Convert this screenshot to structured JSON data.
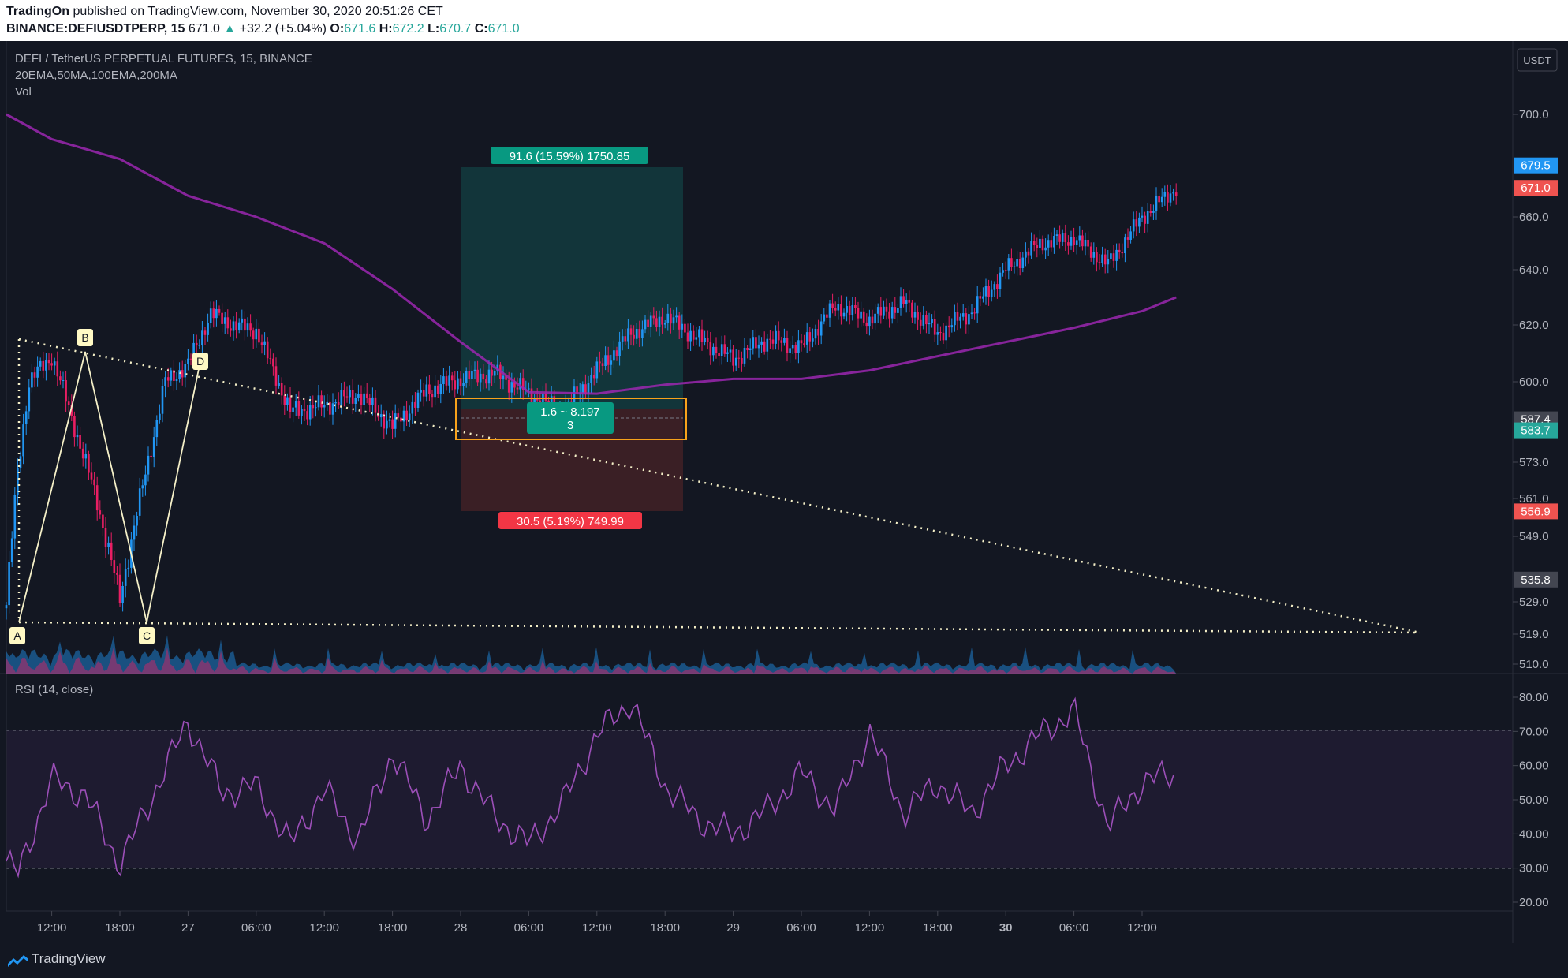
{
  "header": {
    "publisher": "TradingOn",
    "published_text": " published on TradingView.com, November 30, 2020 20:51:26 CET",
    "symbol": "BINANCE:DEFIUSDTPERP, 15",
    "last": "671.0",
    "change": "+32.2 (+5.04%)",
    "o": "671.6",
    "h": "672.2",
    "l": "670.7",
    "c": "671.0",
    "o_label": "O:",
    "h_label": "H:",
    "l_label": "L:",
    "c_label": "C:"
  },
  "legend": {
    "title": "DEFI / TetherUS PERPETUAL FUTURES, 15, BINANCE",
    "studies": "20EMA,50MA,100EMA,200MA",
    "vol": "Vol",
    "rsi": "RSI (14, close)"
  },
  "price_axis": {
    "unit": "USDT",
    "ticks": [
      "700.0",
      "660.0",
      "640.0",
      "620.0",
      "600.0",
      "573.0",
      "561.0",
      "549.0",
      "529.0",
      "519.0",
      "510.0"
    ]
  },
  "rsi_axis": {
    "ticks": [
      "80.00",
      "70.00",
      "60.00",
      "50.00",
      "40.00",
      "30.00",
      "20.00"
    ]
  },
  "time_axis": {
    "labels": [
      "12:00",
      "18:00",
      "27",
      "06:00",
      "12:00",
      "18:00",
      "28",
      "06:00",
      "12:00",
      "18:00",
      "29",
      "06:00",
      "12:00",
      "18:00",
      "30",
      "06:00",
      "12:00"
    ]
  },
  "price_tags": [
    {
      "label": "679.5",
      "color": "#2196f3"
    },
    {
      "label": "671.0",
      "color": "#ef5350"
    },
    {
      "label": "587.4",
      "color": "#434651"
    },
    {
      "label": "583.7",
      "color": "#26a69a"
    },
    {
      "label": "556.9",
      "color": "#ef5350"
    },
    {
      "label": "535.8",
      "color": "#434651"
    }
  ],
  "position_tool": {
    "target_label": "91.6 (15.59%) 1750.85",
    "stop_label": "30.5 (5.19%) 749.99",
    "ratio_label": "1.6 ~ 8.197",
    "qty_label": "3"
  },
  "pattern_points": [
    "A",
    "B",
    "C",
    "D"
  ],
  "colors": {
    "up": "#26a69a",
    "down": "#ef5350",
    "candle_up": "#2196f3",
    "candle_down": "#e91e63",
    "ma": "#9c27b0",
    "rsi": "#9c4fb8",
    "bg": "#131722"
  },
  "chart_data": {
    "type": "line",
    "title": "DEFI / TetherUS PERPETUAL FUTURES, 15, BINANCE",
    "xlabel": "",
    "ylabel": "",
    "series": [
      {
        "name": "20EMA,50MA,100EMA,200MA",
        "x": [
          "26 08:00",
          "26 12:00",
          "26 18:00",
          "27 00:00",
          "27 06:00",
          "27 12:00",
          "27 18:00",
          "28 00:00",
          "28 06:00",
          "28 12:00",
          "28 18:00",
          "29 00:00",
          "29 06:00",
          "29 12:00",
          "29 18:00",
          "30 00:00",
          "30 06:00",
          "30 12:00",
          "30 15:00"
        ],
        "y": [
          700.0,
          690.0,
          682.0,
          668.0,
          660.0,
          650.0,
          633.0,
          614.0,
          596.5,
          596.0,
          599.0,
          601.0,
          601.0,
          604.0,
          609.0,
          614.0,
          619.0,
          625.0,
          630.0
        ]
      },
      {
        "name": "DEFI",
        "x": [
          "26 08:00",
          "26 09:00",
          "26 10:00",
          "26 12:00",
          "26 14:00",
          "26 16:00",
          "26 18:00",
          "26 20:00",
          "26 22:00",
          "27 00:00",
          "27 02:00",
          "27 04:00",
          "27 06:00",
          "27 09:00",
          "27 12:00",
          "27 15:00",
          "27 18:00",
          "27 21:00",
          "28 00:00",
          "28 03:00",
          "28 06:00",
          "28 09:00",
          "28 12:00",
          "28 15:00",
          "28 18:00",
          "28 21:00",
          "29 00:00",
          "29 03:00",
          "29 06:00",
          "29 09:00",
          "29 12:00",
          "29 15:00",
          "29 18:00",
          "29 21:00",
          "30 00:00",
          "30 03:00",
          "30 06:00",
          "30 09:00",
          "30 12:00",
          "30 15:00"
        ],
        "y": [
          528.0,
          570.0,
          600.0,
          609.0,
          585.0,
          560.0,
          530.0,
          565.0,
          600.0,
          606.0,
          624.0,
          620.0,
          618.0,
          590.0,
          592.0,
          596.0,
          585.0,
          597.0,
          601.0,
          603.0,
          596.0,
          590.0,
          604.0,
          617.0,
          623.0,
          615.0,
          608.0,
          615.0,
          612.0,
          627.0,
          622.0,
          628.0,
          617.0,
          625.0,
          640.0,
          650.0,
          652.0,
          642.0,
          660.0,
          671.0
        ]
      },
      {
        "name": "RSI (14, close)",
        "x": [
          "26 08:00",
          "26 09:00",
          "26 12:00",
          "26 15:00",
          "26 18:00",
          "26 21:00",
          "27 00:00",
          "27 03:00",
          "27 06:00",
          "27 09:00",
          "27 12:00",
          "27 15:00",
          "27 18:00",
          "27 21:00",
          "28 00:00",
          "28 03:00",
          "28 06:00",
          "28 09:00",
          "28 12:00",
          "28 15:00",
          "28 18:00",
          "28 21:00",
          "29 00:00",
          "29 03:00",
          "29 06:00",
          "29 09:00",
          "29 12:00",
          "29 15:00",
          "29 18:00",
          "29 21:00",
          "30 00:00",
          "30 03:00",
          "30 06:00",
          "30 09:00",
          "30 12:00",
          "30 15:00"
        ],
        "y": [
          32,
          28,
          56,
          51,
          31,
          52,
          73,
          52,
          54,
          37,
          53,
          38,
          64,
          44,
          60,
          45,
          37,
          49,
          69,
          79,
          54,
          44,
          40,
          47,
          58,
          47,
          70,
          46,
          55,
          46,
          60,
          69,
          76,
          42,
          55,
          58
        ]
      }
    ],
    "ylim": [
      510.0,
      720.0
    ],
    "rsi_ylim": [
      20,
      80
    ],
    "grid": false,
    "legend": "top-left"
  }
}
